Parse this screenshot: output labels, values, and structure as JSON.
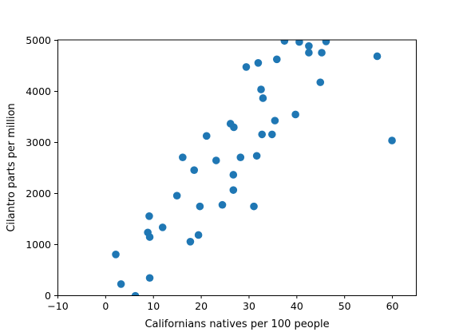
{
  "chart_data": {
    "type": "scatter",
    "title": "",
    "xlabel": "Californians natives per 100 people",
    "ylabel": "Cilantro parts per million",
    "xlim": [
      -10,
      65
    ],
    "ylim": [
      0,
      5000
    ],
    "x_ticks": [
      -10,
      0,
      10,
      20,
      30,
      40,
      50,
      60
    ],
    "x_tick_labels": [
      "−10",
      "0",
      "10",
      "20",
      "30",
      "40",
      "50",
      "60"
    ],
    "y_ticks": [
      0,
      1000,
      2000,
      3000,
      4000,
      5000
    ],
    "y_tick_labels": [
      "0",
      "1000",
      "2000",
      "3000",
      "4000",
      "5000"
    ],
    "grid": false,
    "marker_color": "#1f77b4",
    "series": [
      {
        "points": [
          [
            2.2,
            800
          ],
          [
            3.3,
            220
          ],
          [
            6.3,
            -10
          ],
          [
            9.3,
            340
          ],
          [
            8.9,
            1230
          ],
          [
            9.3,
            1140
          ],
          [
            9.2,
            1550
          ],
          [
            12.0,
            1330
          ],
          [
            15.0,
            1950
          ],
          [
            17.8,
            1050
          ],
          [
            19.5,
            1180
          ],
          [
            19.8,
            1740
          ],
          [
            16.2,
            2700
          ],
          [
            18.6,
            2450
          ],
          [
            21.2,
            3120
          ],
          [
            23.2,
            2640
          ],
          [
            24.5,
            1770
          ],
          [
            26.8,
            2060
          ],
          [
            26.8,
            2360
          ],
          [
            26.2,
            3360
          ],
          [
            26.9,
            3290
          ],
          [
            28.3,
            2700
          ],
          [
            31.1,
            1740
          ],
          [
            31.7,
            2730
          ],
          [
            32.8,
            3150
          ],
          [
            32.6,
            4030
          ],
          [
            33.0,
            3860
          ],
          [
            34.9,
            3150
          ],
          [
            35.5,
            3420
          ],
          [
            39.8,
            3540
          ],
          [
            29.5,
            4470
          ],
          [
            32.0,
            4550
          ],
          [
            35.9,
            4620
          ],
          [
            37.5,
            4980
          ],
          [
            40.6,
            4960
          ],
          [
            42.6,
            4880
          ],
          [
            42.6,
            4750
          ],
          [
            45.3,
            4750
          ],
          [
            46.2,
            4970
          ],
          [
            45.0,
            4170
          ],
          [
            56.9,
            4680
          ],
          [
            60.0,
            3030
          ]
        ]
      }
    ]
  }
}
